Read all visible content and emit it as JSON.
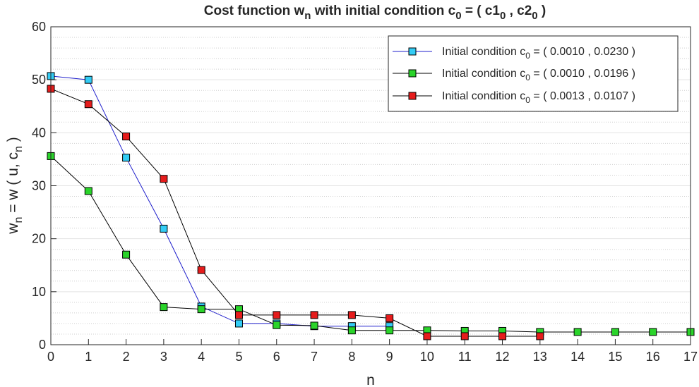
{
  "chart_data": {
    "type": "line",
    "title": {
      "main": "Cost function w",
      "main_sub": "n",
      "mid": " with initial condition c",
      "mid_sub": "0",
      "rest": " = ( c1",
      "rest_sub": "0",
      "tail": " , c2",
      "tail_sub": "0",
      "end": " )"
    },
    "xlabel": "n",
    "ylabel": {
      "a": "w",
      "a_sub": "n",
      "b": " = w ( u, c",
      "b_sub": "n",
      "c": " )"
    },
    "xlim": [
      0,
      17
    ],
    "ylim": [
      0,
      60
    ],
    "x_ticks": [
      0,
      1,
      2,
      3,
      4,
      5,
      6,
      7,
      8,
      9,
      10,
      11,
      12,
      13,
      14,
      15,
      16,
      17
    ],
    "y_ticks": [
      0,
      10,
      20,
      30,
      40,
      50,
      60
    ],
    "y_minor_step": 2,
    "grid": true,
    "legend_position": "top-right",
    "series": [
      {
        "name": {
          "pre": "Initial condition c",
          "sub": "0",
          "post": " = ( 0.0010 , 0.0230 )"
        },
        "line_color": "#1f1fcc",
        "marker_color": "#33ccf5",
        "x": [
          0,
          1,
          2,
          3,
          4,
          5,
          6,
          7,
          8,
          9
        ],
        "y": [
          50.7,
          50.0,
          35.3,
          21.9,
          7.2,
          4.0,
          4.0,
          3.5,
          3.5,
          3.5
        ]
      },
      {
        "name": {
          "pre": "Initial condition c",
          "sub": "0",
          "post": " = ( 0.0010 , 0.0196 )"
        },
        "line_color": "#000000",
        "marker_color": "#2ad42a",
        "x": [
          0,
          1,
          2,
          3,
          4,
          5,
          6,
          7,
          8,
          9,
          10,
          11,
          12,
          13,
          14,
          15,
          16,
          17
        ],
        "y": [
          35.6,
          29.0,
          17.0,
          7.1,
          6.7,
          6.7,
          3.7,
          3.6,
          2.7,
          2.7,
          2.7,
          2.6,
          2.6,
          2.4,
          2.4,
          2.4,
          2.4,
          2.4
        ]
      },
      {
        "name": {
          "pre": "Initial condition c",
          "sub": "0",
          "post": " = ( 0.0013 , 0.0107 )"
        },
        "line_color": "#000000",
        "marker_color": "#e61c1c",
        "x": [
          0,
          1,
          2,
          3,
          4,
          5,
          6,
          7,
          8,
          9,
          10,
          11,
          12,
          13
        ],
        "y": [
          48.3,
          45.4,
          39.3,
          31.3,
          14.1,
          5.6,
          5.6,
          5.6,
          5.6,
          5.0,
          1.6,
          1.6,
          1.6,
          1.6
        ]
      }
    ]
  }
}
